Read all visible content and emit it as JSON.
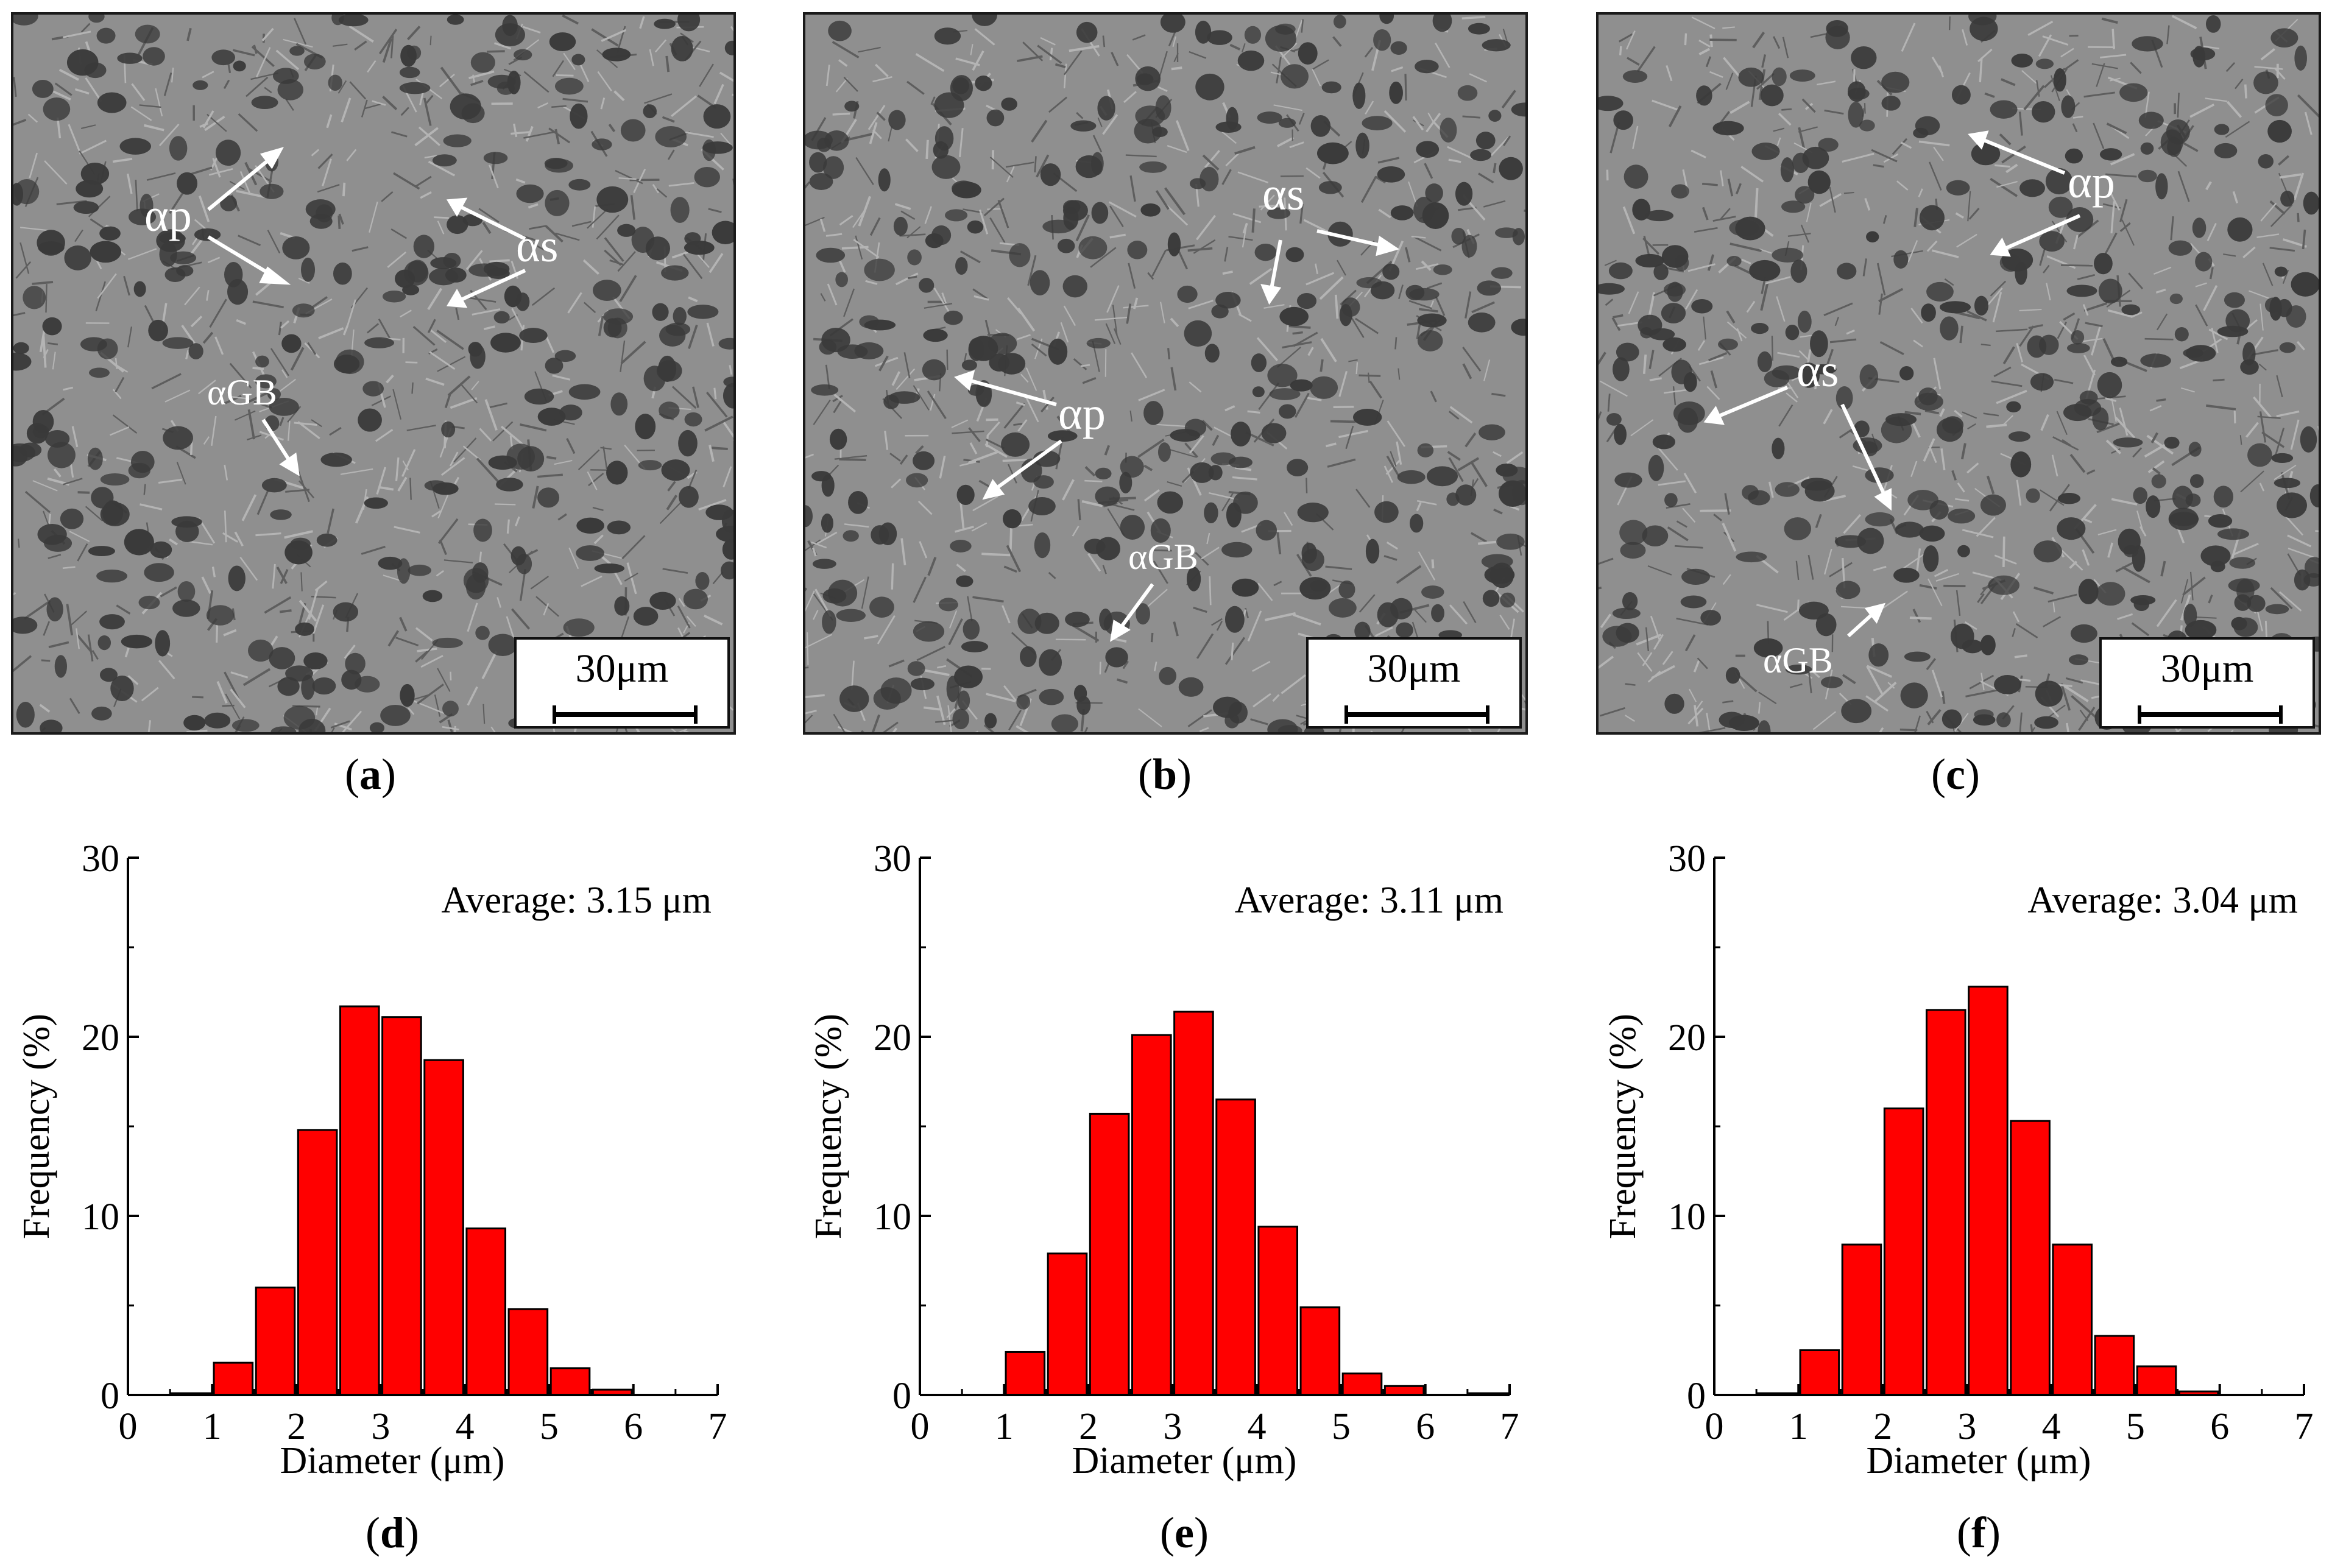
{
  "scale_bar_label": "30μm",
  "colors": {
    "bar_fill": "#ff0000",
    "bar_stroke": "#000000",
    "arrow": "#ffffff",
    "micro_bg": "#8f8f8f",
    "particle": "#3a3a3a"
  },
  "micrographs": [
    {
      "id": "a",
      "panel_label": "a",
      "labels": {
        "alpha_p": "αp",
        "alpha_s": "αs",
        "alpha_gb": "αGB"
      }
    },
    {
      "id": "b",
      "panel_label": "b",
      "labels": {
        "alpha_p": "αp",
        "alpha_s": "αs",
        "alpha_gb": "αGB"
      }
    },
    {
      "id": "c",
      "panel_label": "c",
      "labels": {
        "alpha_p": "αp",
        "alpha_s": "αs",
        "alpha_gb": "αGB"
      }
    }
  ],
  "chart_data": [
    {
      "type": "bar",
      "panel_label": "d",
      "x": [
        0.75,
        1.25,
        1.75,
        2.25,
        2.75,
        3.25,
        3.75,
        4.25,
        4.75,
        5.25,
        5.75,
        6.25,
        6.75
      ],
      "values": [
        0.1,
        1.8,
        6.0,
        14.8,
        21.7,
        21.1,
        18.7,
        9.3,
        4.8,
        1.5,
        0.3,
        0,
        0
      ],
      "xlim": [
        0,
        7
      ],
      "ylim": [
        0,
        30
      ],
      "xticks": [
        0,
        1,
        2,
        3,
        4,
        5,
        6,
        7
      ],
      "yticks": [
        0,
        10,
        20,
        30
      ],
      "xlabel": "Diameter (μm)",
      "ylabel": "Frequency (%)",
      "annotation": "Average: 3.15 μm"
    },
    {
      "type": "bar",
      "panel_label": "e",
      "x": [
        0.75,
        1.25,
        1.75,
        2.25,
        2.75,
        3.25,
        3.75,
        4.25,
        4.75,
        5.25,
        5.75,
        6.25,
        6.75
      ],
      "values": [
        0,
        2.4,
        7.9,
        15.7,
        20.1,
        21.4,
        16.5,
        9.4,
        4.9,
        1.2,
        0.5,
        0,
        0.1
      ],
      "xlim": [
        0,
        7
      ],
      "ylim": [
        0,
        30
      ],
      "xticks": [
        0,
        1,
        2,
        3,
        4,
        5,
        6,
        7
      ],
      "yticks": [
        0,
        10,
        20,
        30
      ],
      "xlabel": "Diameter (μm)",
      "ylabel": "Frequency (%)",
      "annotation": "Average: 3.11 μm"
    },
    {
      "type": "bar",
      "panel_label": "f",
      "x": [
        0.75,
        1.25,
        1.75,
        2.25,
        2.75,
        3.25,
        3.75,
        4.25,
        4.75,
        5.25,
        5.75,
        6.25,
        6.75
      ],
      "values": [
        0.1,
        2.5,
        8.4,
        16.0,
        21.5,
        22.8,
        15.3,
        8.4,
        3.3,
        1.6,
        0.2,
        0,
        0
      ],
      "xlim": [
        0,
        7
      ],
      "ylim": [
        0,
        30
      ],
      "xticks": [
        0,
        1,
        2,
        3,
        4,
        5,
        6,
        7
      ],
      "yticks": [
        0,
        10,
        20,
        30
      ],
      "xlabel": "Diameter (μm)",
      "ylabel": "Frequency (%)",
      "annotation": "Average: 3.04 μm"
    }
  ]
}
